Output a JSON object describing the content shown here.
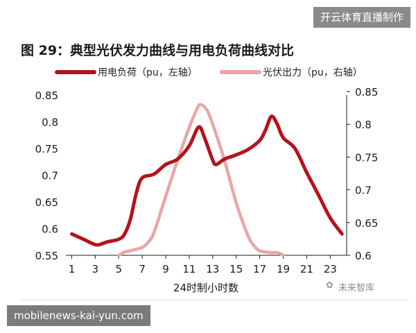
{
  "header": {
    "badge": "开云体育直播制作"
  },
  "figure": {
    "title": "图 29：典型光伏发力曲线与用电负荷曲线对比"
  },
  "watermark": {
    "text": "未来智库",
    "icon": "wechat-icon"
  },
  "footer": {
    "badge": "mobilenews-kai-yun.com"
  },
  "chart_data": {
    "type": "line",
    "title": "图 29：典型光伏发力曲线与用电负荷曲线对比",
    "xlabel": "24时制小时数",
    "x_ticks": [
      "1",
      "3",
      "5",
      "7",
      "9",
      "11",
      "13",
      "15",
      "17",
      "19",
      "21",
      "23"
    ],
    "x_range": [
      0.5,
      24.4
    ],
    "left_axis": {
      "range": [
        0.55,
        0.85
      ],
      "ticks": [
        "0.55",
        "0.6",
        "0.65",
        "0.7",
        "0.75",
        "0.8",
        "0.85"
      ]
    },
    "right_axis": {
      "range": [
        0.6,
        0.85
      ],
      "ticks": [
        "0.6",
        "0.65",
        "0.7",
        "0.75",
        "0.8",
        "0.85"
      ]
    },
    "legend_position": "top",
    "grid": false,
    "series": [
      {
        "name": "用电负荷（pu，左轴）",
        "axis": "left",
        "color": "#b5121b",
        "x": [
          1,
          2,
          3,
          3.5,
          4,
          5,
          5.5,
          6,
          6.5,
          7,
          8,
          9,
          10,
          11,
          11.8,
          12.3,
          13,
          13.3,
          14,
          15,
          16,
          17,
          17.5,
          18,
          18.5,
          19,
          20,
          21,
          22,
          23,
          24
        ],
        "y": [
          0.59,
          0.58,
          0.57,
          0.571,
          0.575,
          0.58,
          0.59,
          0.618,
          0.667,
          0.695,
          0.702,
          0.72,
          0.73,
          0.755,
          0.79,
          0.77,
          0.728,
          0.72,
          0.73,
          0.738,
          0.748,
          0.765,
          0.785,
          0.81,
          0.795,
          0.77,
          0.75,
          0.705,
          0.663,
          0.62,
          0.59
        ]
      },
      {
        "name": "光伏出力（pu，右轴）",
        "axis": "right",
        "color": "#eaa5a5",
        "x": [
          5,
          5.5,
          6,
          7,
          7.5,
          8,
          9,
          10,
          11,
          11.7,
          12,
          12.5,
          13,
          14,
          15,
          16,
          16.5,
          17,
          18,
          18.5,
          19
        ],
        "y": [
          0.6,
          0.605,
          0.607,
          0.612,
          0.62,
          0.635,
          0.69,
          0.745,
          0.795,
          0.825,
          0.83,
          0.822,
          0.8,
          0.745,
          0.68,
          0.63,
          0.615,
          0.607,
          0.604,
          0.604,
          0.6
        ]
      }
    ]
  }
}
